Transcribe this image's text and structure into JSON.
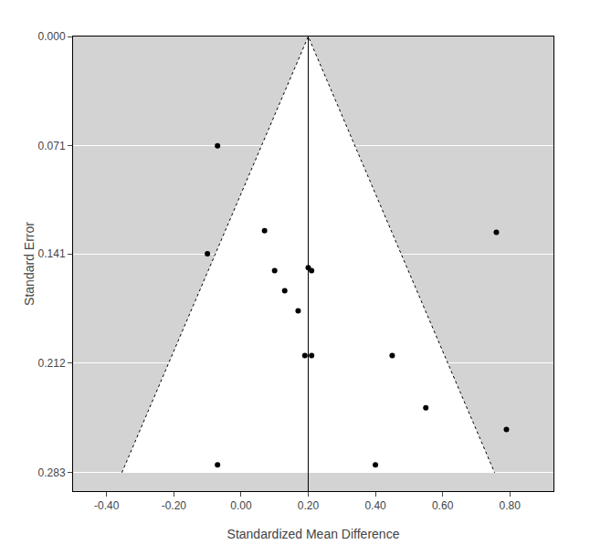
{
  "chart_data": {
    "type": "scatter",
    "xlabel": "Standardized Mean Difference",
    "ylabel": "Standard Error",
    "series": [
      {
        "type": "area",
        "color": "#ffffff",
        "line_style": "dotted",
        "x": [
          -0.35468,
          0.2,
          0.75468
        ],
        "values": [
          0.283,
          0,
          0.283
        ]
      },
      {
        "type": "line",
        "color": "#000000",
        "line_style": "solid",
        "x": [
          0.2,
          0.2
        ],
        "values": [
          0,
          0.295
        ]
      },
      {
        "type": "scatter",
        "color": "#000000",
        "marker": "circle",
        "x": [
          -0.07,
          -0.1,
          0.07,
          0.1,
          0.13,
          0.17,
          0.19,
          0.21,
          0.2,
          0.21,
          0.45,
          0.55,
          0.76,
          0.79,
          -0.07,
          0.4
        ],
        "values": [
          0.071,
          0.141,
          0.126,
          0.152,
          0.165,
          0.178,
          0.207,
          0.207,
          0.15,
          0.152,
          0.207,
          0.241,
          0.127,
          0.255,
          0.278,
          0.278
        ]
      }
    ],
    "xlim": [
      -0.5,
      0.93
    ],
    "ylim": [
      0.295,
      0.0
    ],
    "xticks": [
      {
        "value": -0.4,
        "label": "-0.40"
      },
      {
        "value": -0.2,
        "label": "-0.20"
      },
      {
        "value": 0,
        "label": "0.00"
      },
      {
        "value": 0.2,
        "label": "0.20"
      },
      {
        "value": 0.4,
        "label": "0.40"
      },
      {
        "value": 0.6,
        "label": "0.60"
      },
      {
        "value": 0.8,
        "label": "0.80"
      }
    ],
    "yticks": [
      {
        "value": 0,
        "label": "0.000"
      },
      0.071,
      0.141,
      0.212,
      0.283
    ],
    "grid": "y"
  }
}
